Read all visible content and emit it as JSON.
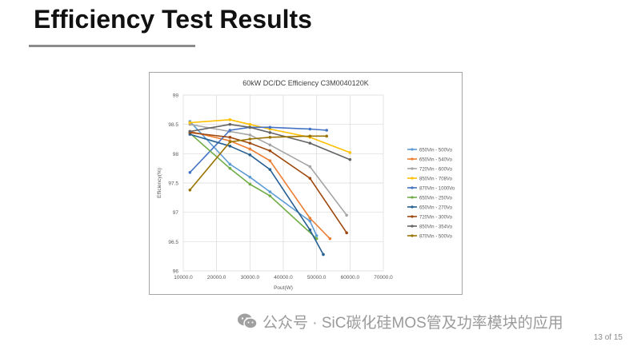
{
  "slide": {
    "title": "Efficiency Test Results",
    "page_number": "13 of 15"
  },
  "watermark": {
    "text": "公众号 · SiC碳化硅MOS管及功率模块的应用",
    "icon": "wechat-icon"
  },
  "chart_data": {
    "type": "line",
    "title": "60kW DC/DC Efficiency C3M0040120K",
    "xlabel": "Pout(W)",
    "ylabel": "Efficiency(%)",
    "xlim": [
      10000,
      70000
    ],
    "ylim": [
      96,
      99
    ],
    "xticks": [
      "10000.0",
      "20000.0",
      "30000.0",
      "40000.0",
      "50000.0",
      "60000.0",
      "70000.0"
    ],
    "yticks": [
      "96",
      "96.5",
      "97",
      "97.5",
      "98",
      "98.5",
      "99"
    ],
    "grid": true,
    "legend_position": "right",
    "series": [
      {
        "name": "650Vin - 500Vo",
        "color": "#5b9bd5",
        "x": [
          12000,
          24000,
          30000,
          36000,
          48000,
          50000
        ],
        "y": [
          98.55,
          97.82,
          97.6,
          97.35,
          96.85,
          96.6
        ]
      },
      {
        "name": "650Vin - 540Vo",
        "color": "#ed7d31",
        "x": [
          12000,
          24000,
          30000,
          36000,
          48000,
          54000
        ],
        "y": [
          98.38,
          98.22,
          98.08,
          97.88,
          96.9,
          96.55
        ]
      },
      {
        "name": "720Vin - 600Vo",
        "color": "#a5a5a5",
        "x": [
          12000,
          24000,
          30000,
          36000,
          48000,
          59000
        ],
        "y": [
          98.5,
          98.38,
          98.32,
          98.15,
          97.78,
          96.95
        ]
      },
      {
        "name": "850Vin - 708Vo",
        "color": "#ffc000",
        "x": [
          12000,
          24000,
          30000,
          36000,
          48000,
          60000
        ],
        "y": [
          98.53,
          98.58,
          98.5,
          98.42,
          98.28,
          98.02
        ]
      },
      {
        "name": "870Vin - 1000Vo",
        "color": "#4472c4",
        "x": [
          12000,
          24000,
          30000,
          36000,
          48000,
          53000
        ],
        "y": [
          97.68,
          98.4,
          98.45,
          98.45,
          98.42,
          98.4
        ]
      },
      {
        "name": "650Vin - 250Vo",
        "color": "#70ad47",
        "x": [
          12000,
          24000,
          30000,
          36000,
          50000
        ],
        "y": [
          98.35,
          97.75,
          97.48,
          97.28,
          96.55
        ]
      },
      {
        "name": "650Vin - 270Vo",
        "color": "#255e91",
        "x": [
          12000,
          24000,
          30000,
          36000,
          48000,
          52000
        ],
        "y": [
          98.33,
          98.13,
          97.98,
          97.73,
          96.7,
          96.28
        ]
      },
      {
        "name": "720Vin - 300Vo",
        "color": "#9e480e",
        "x": [
          12000,
          24000,
          30000,
          36000,
          48000,
          59000
        ],
        "y": [
          98.36,
          98.28,
          98.18,
          98.05,
          97.58,
          96.65
        ]
      },
      {
        "name": "850Vin - 354Vo",
        "color": "#636363",
        "x": [
          12000,
          24000,
          30000,
          36000,
          48000,
          60000
        ],
        "y": [
          98.38,
          98.5,
          98.45,
          98.36,
          98.18,
          97.9
        ]
      },
      {
        "name": "870Vin - 500Vo",
        "color": "#997300",
        "x": [
          12000,
          24000,
          30000,
          36000,
          48000,
          53000
        ],
        "y": [
          97.38,
          98.2,
          98.25,
          98.28,
          98.3,
          98.3
        ]
      }
    ]
  }
}
